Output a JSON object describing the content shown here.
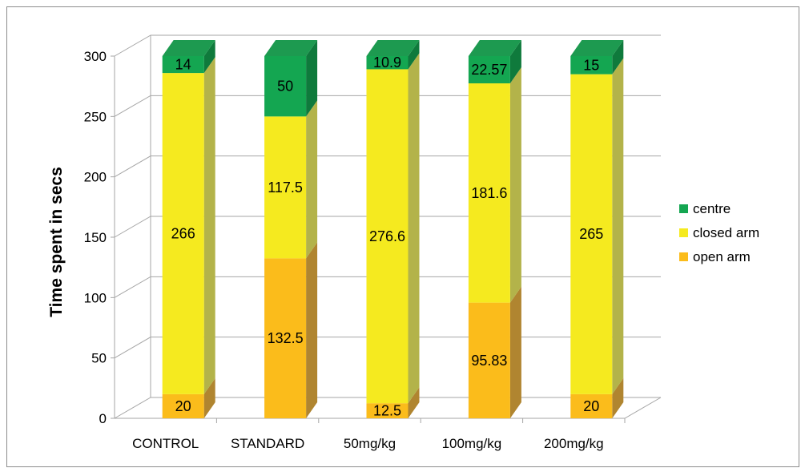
{
  "chart_data": {
    "type": "bar",
    "stacked": true,
    "three_d": true,
    "title": "",
    "xlabel": "",
    "ylabel": "Time spent in secs",
    "ylim": [
      0,
      300
    ],
    "yticks": [
      0,
      50,
      100,
      150,
      200,
      250,
      300
    ],
    "grid": true,
    "legend_position": "right",
    "categories": [
      "CONTROL",
      "STANDARD",
      "50mg/kg",
      "100mg/kg",
      "200mg/kg"
    ],
    "series": [
      {
        "name": "open arm",
        "values": [
          20,
          132.5,
          12.5,
          95.83,
          20
        ],
        "labels": [
          "20",
          "132.5",
          "12.5",
          "95.83",
          "20"
        ],
        "color": "#fbbc1b",
        "side": "#b08530",
        "top": "#d9a020"
      },
      {
        "name": "closed arm",
        "values": [
          266,
          117.5,
          276.6,
          181.6,
          265
        ],
        "labels": [
          "266",
          "117.5",
          "276.6",
          "181.6",
          "265"
        ],
        "color": "#f5ea1f",
        "side": "#b3b34a",
        "top": "#e0d838"
      },
      {
        "name": "centre",
        "values": [
          14,
          50,
          10.9,
          22.57,
          15
        ],
        "labels": [
          "14",
          "50",
          "10.9",
          "22.57",
          "15"
        ],
        "color": "#14a651",
        "side": "#0f7a3c",
        "top": "#1d9a50"
      }
    ],
    "legend_order": [
      "centre",
      "closed arm",
      "open arm"
    ]
  }
}
